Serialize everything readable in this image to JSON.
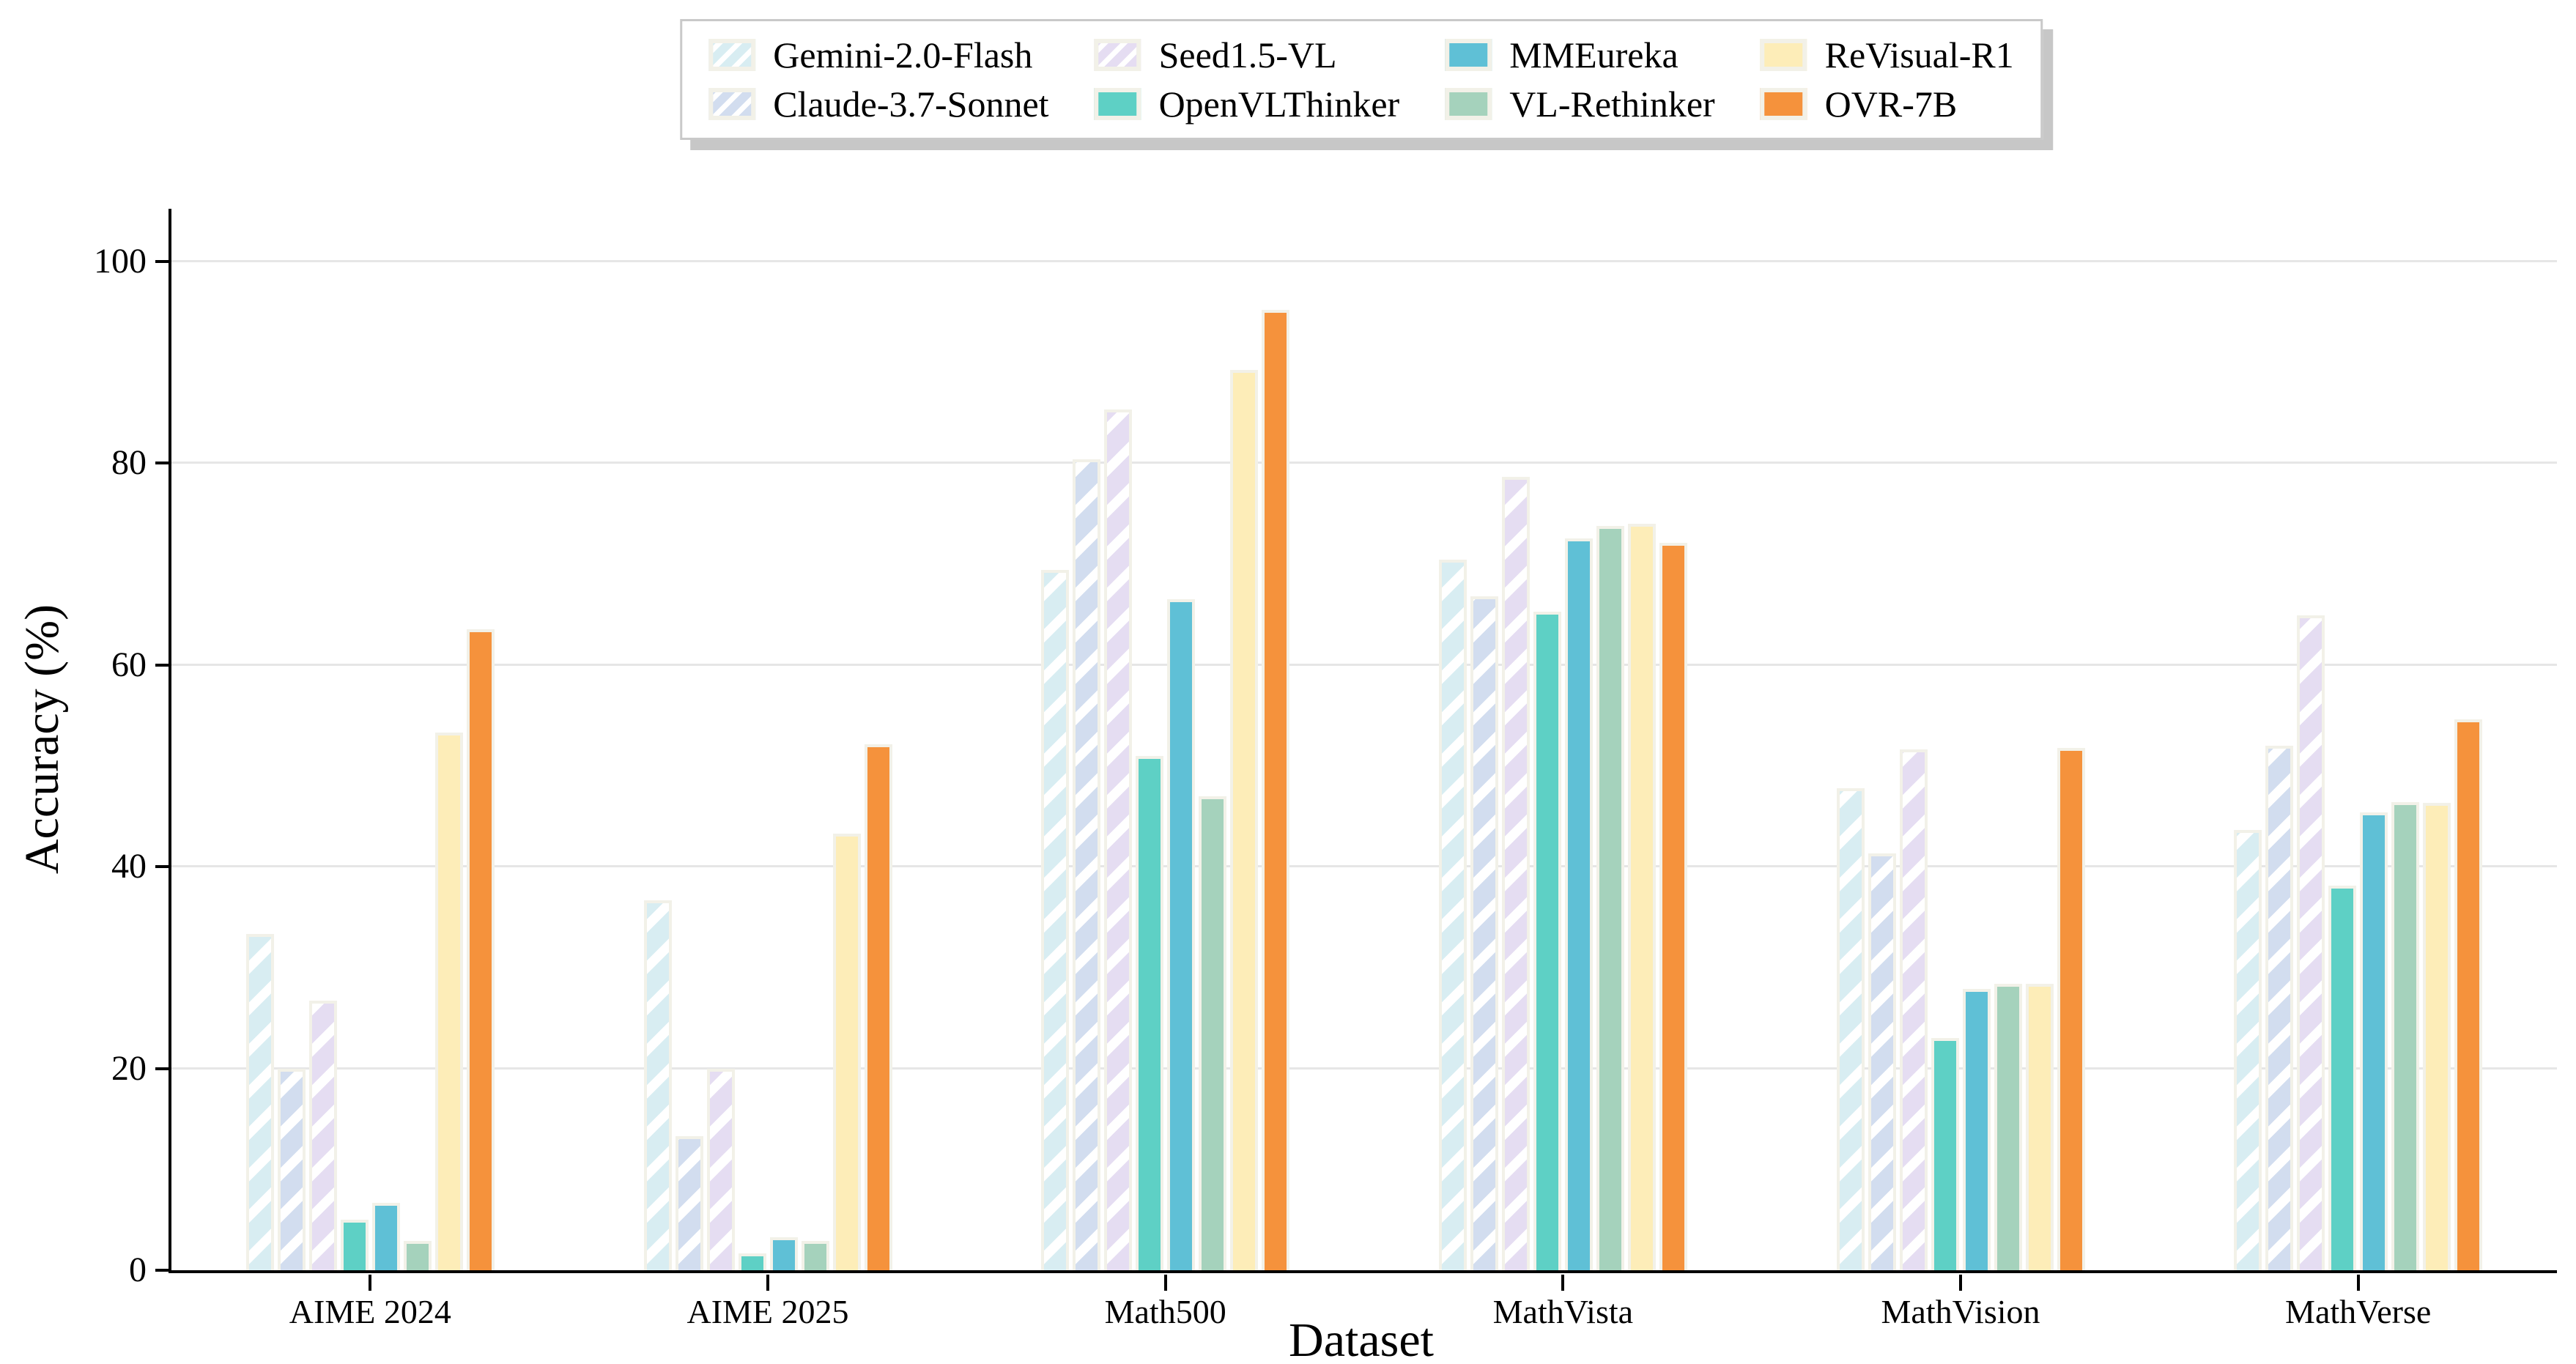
{
  "chart_data": {
    "type": "bar",
    "title": "",
    "xlabel": "Dataset",
    "ylabel": "Accuracy (%)",
    "ylim": [
      0,
      105.2
    ],
    "yticks": [
      0,
      20,
      40,
      60,
      80,
      100
    ],
    "grid": "horizontal",
    "grid_color": "#e6e6e6",
    "background": "#ffffff",
    "bar_edge_color": "#f2f1e8",
    "hatch_color": "#ffffff",
    "legend_position": "top-center",
    "legend_columns": 4,
    "legend_border_color": "#c9c9c9",
    "categories": [
      "AIME 2024",
      "AIME 2025",
      "Math500",
      "MathVista",
      "MathVision",
      "MathVerse"
    ],
    "series": [
      {
        "name": "Gemini-2.0-Flash",
        "color": "#d8edf2",
        "hatch": true,
        "values": [
          33.3,
          36.7,
          69.4,
          70.4,
          47.8,
          43.6
        ]
      },
      {
        "name": "Claude-3.7-Sonnet",
        "color": "#d2ddef",
        "hatch": true,
        "values": [
          20.0,
          13.3,
          80.4,
          66.8,
          41.3,
          52.0
        ]
      },
      {
        "name": "Seed1.5-VL",
        "color": "#e5ddf2",
        "hatch": true,
        "values": [
          26.7,
          20.0,
          85.3,
          78.6,
          51.6,
          64.9
        ]
      },
      {
        "name": "OpenVLThinker",
        "color": "#5ed0c5",
        "hatch": false,
        "values": [
          5.0,
          1.7,
          51.0,
          65.3,
          23.0,
          38.1
        ]
      },
      {
        "name": "MMEureka",
        "color": "#5fc0d6",
        "hatch": false,
        "values": [
          6.7,
          3.3,
          66.5,
          72.5,
          27.9,
          45.4
        ]
      },
      {
        "name": "VL-Rethinker",
        "color": "#a5d2bc",
        "hatch": false,
        "values": [
          2.9,
          2.9,
          47.0,
          73.8,
          28.4,
          46.4
        ]
      },
      {
        "name": "ReVisual-R1",
        "color": "#fdedb8",
        "hatch": false,
        "values": [
          53.3,
          43.3,
          89.2,
          74.0,
          28.4,
          46.3
        ]
      },
      {
        "name": "OVR-7B",
        "color": "#f5923c",
        "hatch": false,
        "values": [
          63.5,
          52.1,
          95.2,
          72.1,
          51.8,
          54.6
        ]
      }
    ]
  }
}
